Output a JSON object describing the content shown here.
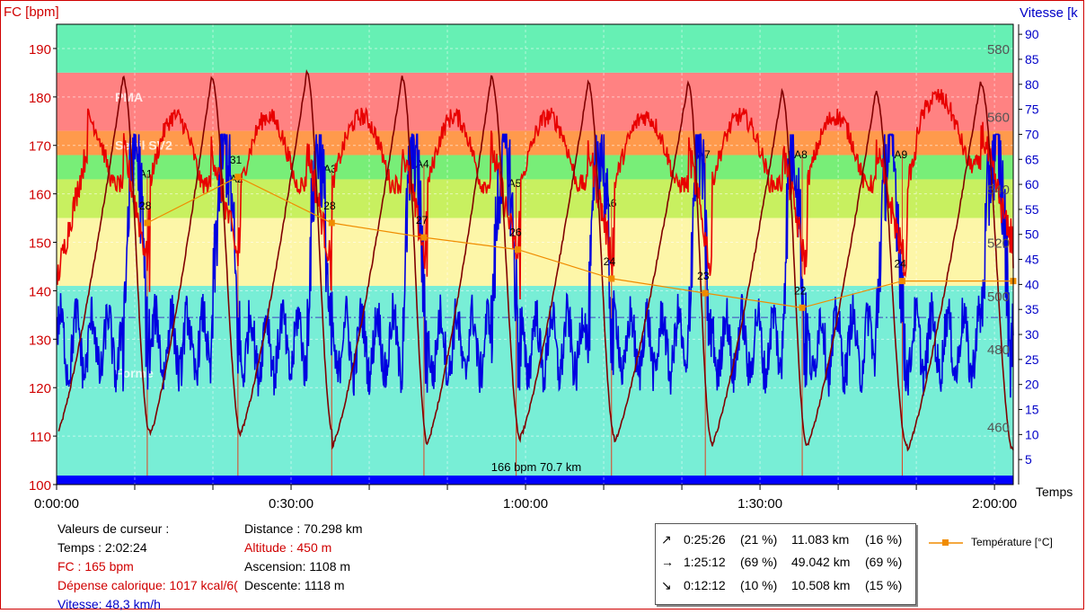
{
  "chart_data": {
    "type": "line",
    "left_axis_label": "FC [bpm]",
    "right_axis_label": "Vitesse [k",
    "x_axis_label": "Temps",
    "x_ticks": [
      "0:00:00",
      "0:30:00",
      "1:00:00",
      "1:30:00",
      "2:00:00"
    ],
    "x_range_minutes": [
      0,
      122.4
    ],
    "fc_ticks": [
      100,
      110,
      120,
      130,
      140,
      150,
      160,
      170,
      180,
      190
    ],
    "fc_range": [
      100,
      195
    ],
    "speed_ticks": [
      5,
      10,
      15,
      20,
      25,
      30,
      35,
      40,
      45,
      50,
      55,
      60,
      65,
      70,
      75,
      80,
      85,
      90
    ],
    "speed_range": [
      0,
      92
    ],
    "altitude_ticks": [
      460,
      480,
      500,
      520,
      540,
      560,
      580
    ],
    "zones": [
      {
        "name": "",
        "from": 185,
        "to": 195,
        "color": "#66f0b4"
      },
      {
        "name": "PMA",
        "from": 173,
        "to": 185,
        "color": "#ff8282"
      },
      {
        "name": "Seuil SV2",
        "from": 168,
        "to": 173,
        "color": "#ff9a4c"
      },
      {
        "name": "",
        "from": 163,
        "to": 168,
        "color": "#78ee78"
      },
      {
        "name": "",
        "from": 155,
        "to": 163,
        "color": "#c8f060"
      },
      {
        "name": "",
        "from": 141,
        "to": 155,
        "color": "#fdf6a8"
      },
      {
        "name": "Forme",
        "from": 100,
        "to": 141,
        "color": "#78eed6"
      }
    ],
    "zone_label_fc": {
      "PMA": 180,
      "Seuil SV2": 170,
      "Forme": 123
    },
    "series": [
      {
        "key": "fc",
        "color": "#e80000"
      },
      {
        "key": "vitesse",
        "color": "#0000e0"
      },
      {
        "key": "altitude",
        "color": "#800000"
      },
      {
        "name": "Température [°C]",
        "key": "temperature",
        "color": "#f08c00"
      }
    ],
    "laps": [
      {
        "label": "A1",
        "minute": 11.6,
        "fc": 163
      },
      {
        "label": "A2",
        "minute": 23.2,
        "fc": 162
      },
      {
        "label": "A3",
        "minute": 35.2,
        "fc": 164
      },
      {
        "label": "A4",
        "minute": 47.0,
        "fc": 165
      },
      {
        "label": "A5",
        "minute": 58.8,
        "fc": 161
      },
      {
        "label": "A6",
        "minute": 71.0,
        "fc": 157
      },
      {
        "label": "A7",
        "minute": 83.0,
        "fc": 167
      },
      {
        "label": "A8",
        "minute": 95.4,
        "fc": 167
      },
      {
        "label": "A9",
        "minute": 108.2,
        "fc": 167
      }
    ],
    "temperature_points": [
      {
        "minute": 11.6,
        "label": "28",
        "fc": 154
      },
      {
        "minute": 23.2,
        "label": "31",
        "fc": 163.5
      },
      {
        "minute": 35.2,
        "label": "28",
        "fc": 154
      },
      {
        "minute": 47.0,
        "label": "27",
        "fc": 151
      },
      {
        "minute": 59.0,
        "label": "26",
        "fc": 148.5
      },
      {
        "minute": 71.0,
        "label": "24",
        "fc": 142.5
      },
      {
        "minute": 83.0,
        "label": "23",
        "fc": 139.5
      },
      {
        "minute": 95.4,
        "label": "22",
        "fc": 136.5
      },
      {
        "minute": 108.2,
        "label": "24",
        "fc": 142
      },
      {
        "minute": 122.4,
        "label": "",
        "fc": 142
      }
    ],
    "altitude_cycles": [
      {
        "start": 0.2,
        "peak": 8.5,
        "trough": 11.9,
        "fc_min": 111,
        "fc_max": 184
      },
      {
        "start": 11.9,
        "peak": 19.8,
        "trough": 23.6,
        "fc_min": 110,
        "fc_max": 184
      },
      {
        "start": 23.6,
        "peak": 32.0,
        "trough": 35.3,
        "fc_min": 111,
        "fc_max": 185
      },
      {
        "start": 35.3,
        "peak": 44.2,
        "trough": 47.5,
        "fc_min": 108,
        "fc_max": 184
      },
      {
        "start": 47.5,
        "peak": 55.6,
        "trough": 59.4,
        "fc_min": 109,
        "fc_max": 184
      },
      {
        "start": 59.4,
        "peak": 68.0,
        "trough": 71.4,
        "fc_min": 110,
        "fc_max": 183
      },
      {
        "start": 71.4,
        "peak": 80.8,
        "trough": 83.8,
        "fc_min": 109,
        "fc_max": 183
      },
      {
        "start": 83.8,
        "peak": 92.8,
        "trough": 96.0,
        "fc_min": 108,
        "fc_max": 181
      },
      {
        "start": 96.0,
        "peak": 104.8,
        "trough": 108.8,
        "fc_min": 108,
        "fc_max": 181
      },
      {
        "start": 108.8,
        "peak": 118.2,
        "trough": 122.4,
        "fc_min": 107,
        "fc_max": 183
      }
    ],
    "fc_mid_threshold": 134.5,
    "bottom_bar_text": "166 bpm 70.7 km"
  },
  "cursor_values": {
    "title": "Valeurs de curseur :",
    "temps": "Temps : 2:02:24",
    "fc": "FC : 165 bpm",
    "depense": "Dépense calorique: 1017 kcal/6(",
    "vitesse": "Vitesse: 48,3 km/h",
    "distance": "Distance : 70.298 km",
    "altitude": "Altitude : 450 m",
    "ascension": "Ascension: 1108 m",
    "descente": "Descente: 1118 m"
  },
  "segments": [
    {
      "symbol": "↗",
      "time": "0:25:26",
      "time_pct": "(21 %)",
      "distance": "11.083 km",
      "dist_pct": "(16 %)"
    },
    {
      "symbol": "→",
      "time": "1:25:12",
      "time_pct": "(69 %)",
      "distance": "49.042 km",
      "dist_pct": "(69 %)"
    },
    {
      "symbol": "↘",
      "time": "0:12:12",
      "time_pct": "(10 %)",
      "distance": "10.508 km",
      "dist_pct": "(15 %)"
    }
  ],
  "legend": {
    "temperature": "Température [°C]"
  },
  "colors": {
    "fc": "#e80000",
    "speed": "#0000e0",
    "altitude": "#800000",
    "temperature": "#f08c00",
    "frame": "#d00000",
    "bottom_bar": "#0000ff"
  }
}
